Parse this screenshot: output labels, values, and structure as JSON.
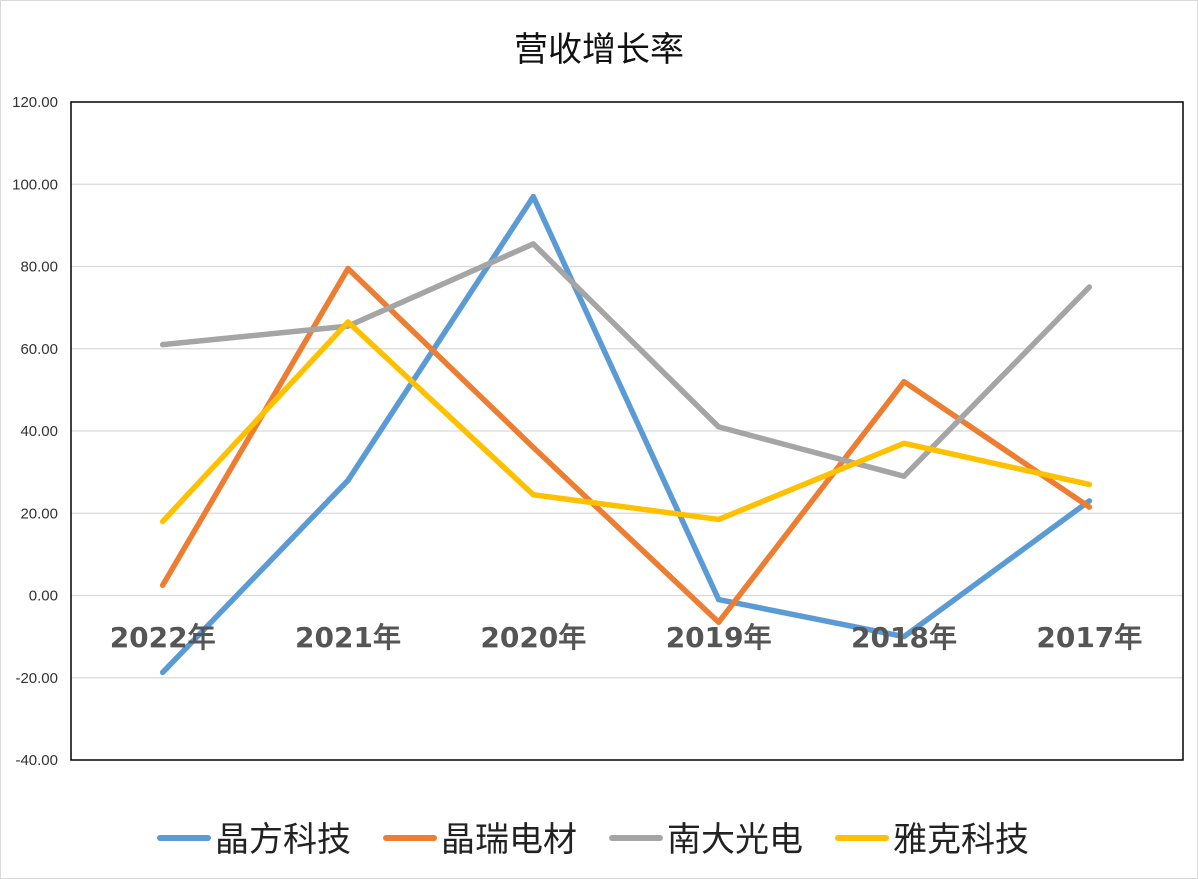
{
  "chart_data": {
    "type": "line",
    "title": "营收增长率",
    "categories": [
      "2022年",
      "2021年",
      "2020年",
      "2019年",
      "2018年",
      "2017年"
    ],
    "ylim": [
      -40,
      120
    ],
    "yticks": [
      "120.00",
      "100.00",
      "80.00",
      "60.00",
      "40.00",
      "20.00",
      "0.00",
      "-20.00",
      "-40.00"
    ],
    "ytick_values": [
      120,
      100,
      80,
      60,
      40,
      20,
      0,
      -20,
      -40
    ],
    "grid": true,
    "legend_position": "bottom",
    "series": [
      {
        "name": "晶方科技",
        "color": "#5b9bd5",
        "values": [
          -18.7,
          28.0,
          97.0,
          -1.0,
          -10.0,
          23.0
        ]
      },
      {
        "name": "晶瑞电材",
        "color": "#ed7d31",
        "values": [
          2.5,
          79.5,
          36.0,
          -6.5,
          52.0,
          21.5
        ]
      },
      {
        "name": "南大光电",
        "color": "#a5a5a5",
        "values": [
          61.0,
          65.5,
          85.5,
          41.0,
          29.0,
          75.0
        ]
      },
      {
        "name": "雅克科技",
        "color": "#ffc000",
        "values": [
          18.0,
          66.5,
          24.5,
          18.5,
          37.0,
          27.0
        ]
      }
    ]
  }
}
